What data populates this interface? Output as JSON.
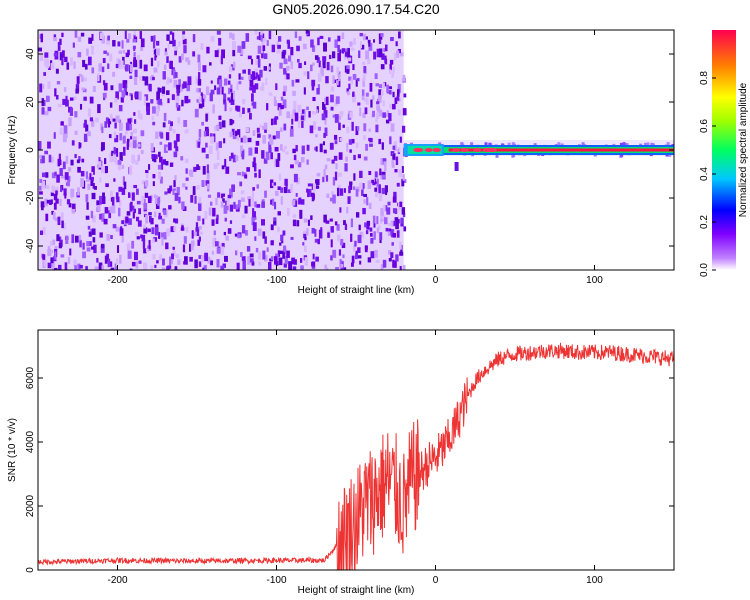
{
  "title": "GN05.2026.090.17.54.C20",
  "chart_data": [
    {
      "type": "heatmap",
      "xlabel": "Height of straight line (km)",
      "ylabel": "Frequency (Hz)",
      "xlim": [
        -250,
        150
      ],
      "ylim": [
        -50,
        50
      ],
      "xticks": [
        -200,
        -100,
        0,
        100
      ],
      "yticks": [
        -40,
        -20,
        0,
        20,
        40
      ],
      "noise_region": {
        "x": [
          -250,
          -20
        ],
        "y": [
          -50,
          50
        ],
        "level": "low"
      },
      "signal_band": {
        "x": [
          -20,
          150
        ],
        "center_y": 0,
        "half_width": 1.5
      },
      "colorbar": {
        "label": "Normalized spectral amplitude",
        "ticks": [
          0.0,
          0.2,
          0.4,
          0.6,
          0.8
        ],
        "range": [
          0,
          1
        ],
        "colors": [
          "#ffffff",
          "#8000ff",
          "#0000ff",
          "#00ffff",
          "#00ff00",
          "#ffff00",
          "#ff8000",
          "#ff0000",
          "#ff1050"
        ]
      },
      "grid": false
    },
    {
      "type": "line",
      "xlabel": "Height of straight line (km)",
      "ylabel": "SNR (10 * v/v)",
      "xlim": [
        -250,
        150
      ],
      "ylim": [
        0,
        7500
      ],
      "xticks": [
        -200,
        -100,
        0,
        100
      ],
      "yticks": [
        0,
        2000,
        4000,
        6000
      ],
      "series": [
        {
          "color": "#ee3333",
          "x": [
            -250,
            -200,
            -150,
            -100,
            -70,
            -60,
            -55,
            -50,
            -45,
            -40,
            -35,
            -30,
            -25,
            -20,
            -15,
            -10,
            -5,
            0,
            5,
            10,
            15,
            20,
            25,
            30,
            40,
            50,
            60,
            70,
            80,
            90,
            100,
            110,
            120,
            130,
            140,
            150
          ],
          "y": [
            250,
            300,
            280,
            300,
            300,
            900,
            1200,
            1500,
            2000,
            2200,
            2500,
            2800,
            2500,
            2000,
            2800,
            3000,
            3300,
            3500,
            3800,
            4200,
            4800,
            5400,
            5900,
            6200,
            6600,
            6750,
            6800,
            6850,
            6850,
            6800,
            6800,
            6800,
            6750,
            6700,
            6650,
            6600
          ]
        }
      ],
      "grid": false
    }
  ]
}
